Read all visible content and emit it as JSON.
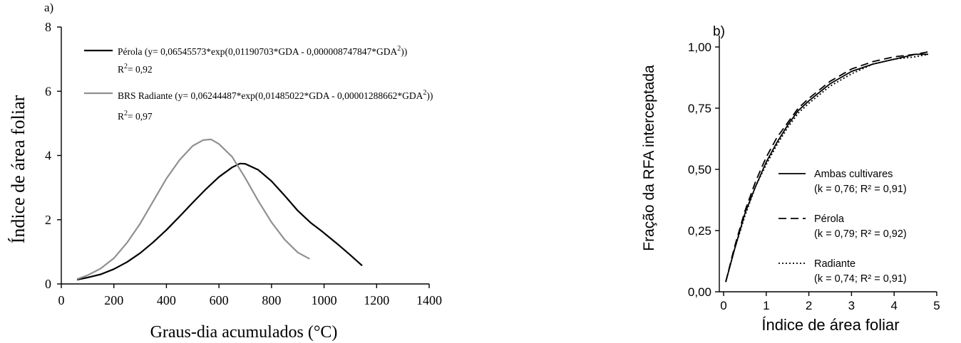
{
  "chart_data": [
    {
      "type": "line",
      "panel_label": "a)",
      "xlabel": "Graus-dia acumulados (°C)",
      "ylabel": "Índice de área foliar",
      "xlim": [
        0,
        1400
      ],
      "ylim": [
        0,
        8
      ],
      "xticks": [
        "0",
        "200",
        "400",
        "600",
        "800",
        "1000",
        "1200",
        "1400"
      ],
      "yticks": [
        "0",
        "2",
        "4",
        "6",
        "8"
      ],
      "legend": [
        {
          "name": "Pérola",
          "label": "Pérola (y= 0,06545573*exp(0,01190703*GDA - 0,000008747847*GDA",
          "sup": "2",
          "close": "))",
          "r2_label": "R",
          "r2_sup": "2",
          "r2_value": "= 0,92"
        },
        {
          "name": "BRS Radiante",
          "label": "BRS Radiante (y= 0,06244487*exp(0,01485022*GDA - 0,00001288662*GDA",
          "sup": "2",
          "close": "))",
          "r2_label": "R",
          "r2_sup": "2",
          "r2_value": "= 0,97"
        }
      ],
      "series": [
        {
          "name": "Pérola",
          "color": "#000000",
          "x": [
            60,
            100,
            150,
            200,
            250,
            300,
            350,
            400,
            450,
            500,
            550,
            600,
            650,
            680,
            700,
            750,
            800,
            850,
            900,
            950,
            990,
            1050,
            1100,
            1145
          ],
          "y": [
            0.13,
            0.2,
            0.3,
            0.46,
            0.68,
            0.96,
            1.3,
            1.68,
            2.1,
            2.53,
            2.95,
            3.33,
            3.63,
            3.75,
            3.74,
            3.55,
            3.2,
            2.75,
            2.28,
            1.9,
            1.65,
            1.25,
            0.9,
            0.57
          ]
        },
        {
          "name": "BRS Radiante",
          "color": "#909090",
          "x": [
            60,
            100,
            150,
            200,
            250,
            300,
            350,
            400,
            450,
            500,
            540,
            570,
            600,
            650,
            700,
            750,
            800,
            850,
            900,
            945
          ],
          "y": [
            0.15,
            0.27,
            0.48,
            0.8,
            1.28,
            1.88,
            2.58,
            3.28,
            3.86,
            4.3,
            4.48,
            4.5,
            4.36,
            3.96,
            3.3,
            2.58,
            1.92,
            1.38,
            0.98,
            0.78
          ]
        }
      ]
    },
    {
      "type": "line",
      "panel_label": "b)",
      "xlabel": "Índice de área foliar",
      "ylabel": "Fração da RFA interceptada",
      "xlim": [
        0,
        5
      ],
      "ylim": [
        0,
        1
      ],
      "xticks": [
        "0",
        "1",
        "2",
        "3",
        "4",
        "5"
      ],
      "yticks": [
        "0,00",
        "0,25",
        "0,50",
        "0,75",
        "1,00"
      ],
      "series": [
        {
          "name": "Ambas cultivares",
          "stats": "(k = 0,76; R² = 0,91)",
          "style": "solid",
          "k": 0.76,
          "x": [
            0.05,
            0.25,
            0.5,
            0.75,
            1.0,
            1.25,
            1.5,
            1.75,
            2.0,
            2.5,
            3.0,
            3.5,
            4.0,
            4.5,
            4.8
          ],
          "y": [
            0.04,
            0.17,
            0.32,
            0.43,
            0.53,
            0.61,
            0.68,
            0.74,
            0.78,
            0.85,
            0.9,
            0.93,
            0.95,
            0.97,
            0.97
          ]
        },
        {
          "name": "Pérola",
          "stats": "(k = 0,79; R² = 0,92)",
          "style": "dashed",
          "k": 0.79,
          "x": [
            0.05,
            0.25,
            0.5,
            0.75,
            1.0,
            1.25,
            1.5,
            1.75,
            2.0,
            2.5,
            3.0,
            3.5,
            4.0,
            4.5,
            4.8
          ],
          "y": [
            0.04,
            0.18,
            0.33,
            0.45,
            0.55,
            0.63,
            0.69,
            0.75,
            0.79,
            0.86,
            0.91,
            0.94,
            0.96,
            0.97,
            0.98
          ]
        },
        {
          "name": "Radiante",
          "stats": "(k = 0,74; R² = 0,91)",
          "style": "dotted",
          "k": 0.74,
          "x": [
            0.05,
            0.25,
            0.5,
            0.75,
            1.0,
            1.25,
            1.5,
            1.75,
            2.0,
            2.5,
            3.0,
            3.5,
            4.0,
            4.5,
            4.8
          ],
          "y": [
            0.04,
            0.17,
            0.31,
            0.43,
            0.52,
            0.6,
            0.67,
            0.73,
            0.77,
            0.84,
            0.89,
            0.93,
            0.95,
            0.96,
            0.97
          ]
        }
      ]
    }
  ]
}
